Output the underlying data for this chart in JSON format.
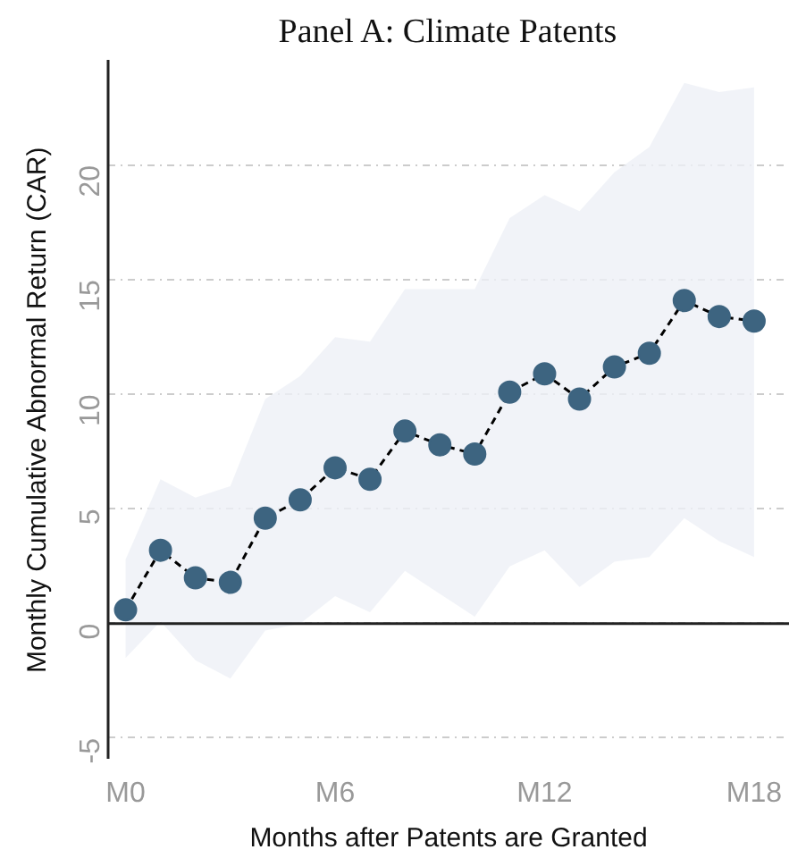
{
  "chart_data": {
    "type": "line",
    "title": "Panel A: Climate Patents",
    "xlabel": "Months after Patents are Granted",
    "ylabel": "Monthly Cumulative Abnormal Return (CAR)",
    "categories": [
      "M0",
      null,
      null,
      null,
      null,
      null,
      "M6",
      null,
      null,
      null,
      null,
      null,
      "M12",
      null,
      null,
      null,
      null,
      null,
      "M18"
    ],
    "series": [
      {
        "color": "#3d6480",
        "values": [
          0.6,
          3.2,
          2.0,
          1.8,
          4.6,
          5.4,
          6.8,
          6.3,
          8.4,
          7.8,
          7.4,
          10.1,
          10.9,
          9.8,
          11.2,
          11.8,
          14.1,
          13.4,
          13.2
        ],
        "lower": [
          -1.5,
          0.1,
          -1.6,
          -2.4,
          -0.3,
          0.0,
          1.2,
          0.5,
          2.3,
          1.3,
          0.3,
          2.5,
          3.2,
          1.6,
          2.7,
          2.9,
          4.6,
          3.6,
          2.9
        ],
        "upper": [
          2.8,
          6.3,
          5.5,
          6.0,
          9.8,
          10.8,
          12.5,
          12.3,
          14.6,
          14.6,
          14.6,
          17.7,
          18.7,
          18.0,
          19.7,
          20.8,
          23.6,
          23.2,
          23.4
        ]
      }
    ],
    "ylim": [
      -5.9,
      24.6
    ],
    "yticks": [
      -5,
      0,
      5,
      10,
      15,
      20
    ],
    "grid": "y",
    "marker": "circle",
    "line_style": "dashed",
    "ref_lines": [
      {
        "axis": "y",
        "value": 0,
        "color": "#222222"
      }
    ]
  }
}
